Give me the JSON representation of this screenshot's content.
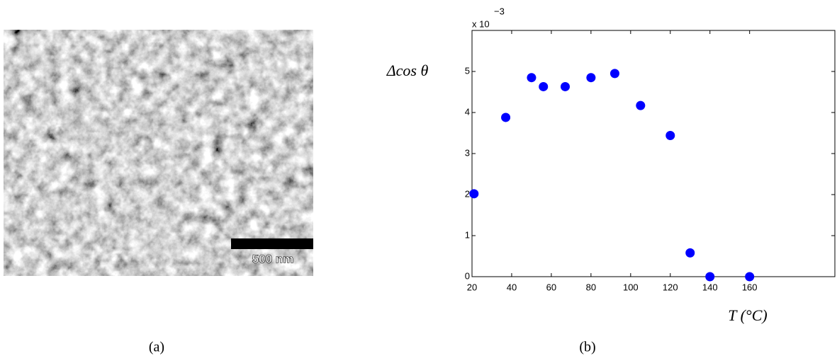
{
  "panels": {
    "a": {
      "caption": "(a)",
      "scale_bar": "500 nm"
    },
    "b": {
      "caption": "(b)"
    }
  },
  "chart_data": {
    "type": "scatter",
    "y_label": "Δcos θ",
    "x_label": "T (°C)",
    "y_multiplier": "x 10",
    "y_multiplier_exponent": "−3",
    "x": [
      21,
      37,
      50,
      56,
      67,
      80,
      92,
      105,
      120,
      130,
      140,
      160
    ],
    "series": [
      {
        "name": "Δcos θ",
        "color": "#0000ff",
        "values": [
          2.02,
          3.88,
          4.85,
          4.63,
          4.63,
          4.85,
          4.95,
          4.17,
          3.44,
          0.58,
          0,
          0
        ]
      }
    ],
    "xlim": [
      20,
      203
    ],
    "ylim": [
      0,
      6
    ],
    "xticks": [
      20,
      40,
      60,
      80,
      100,
      120,
      140,
      160
    ],
    "yticks": [
      0,
      1,
      2,
      3,
      4,
      5
    ]
  }
}
